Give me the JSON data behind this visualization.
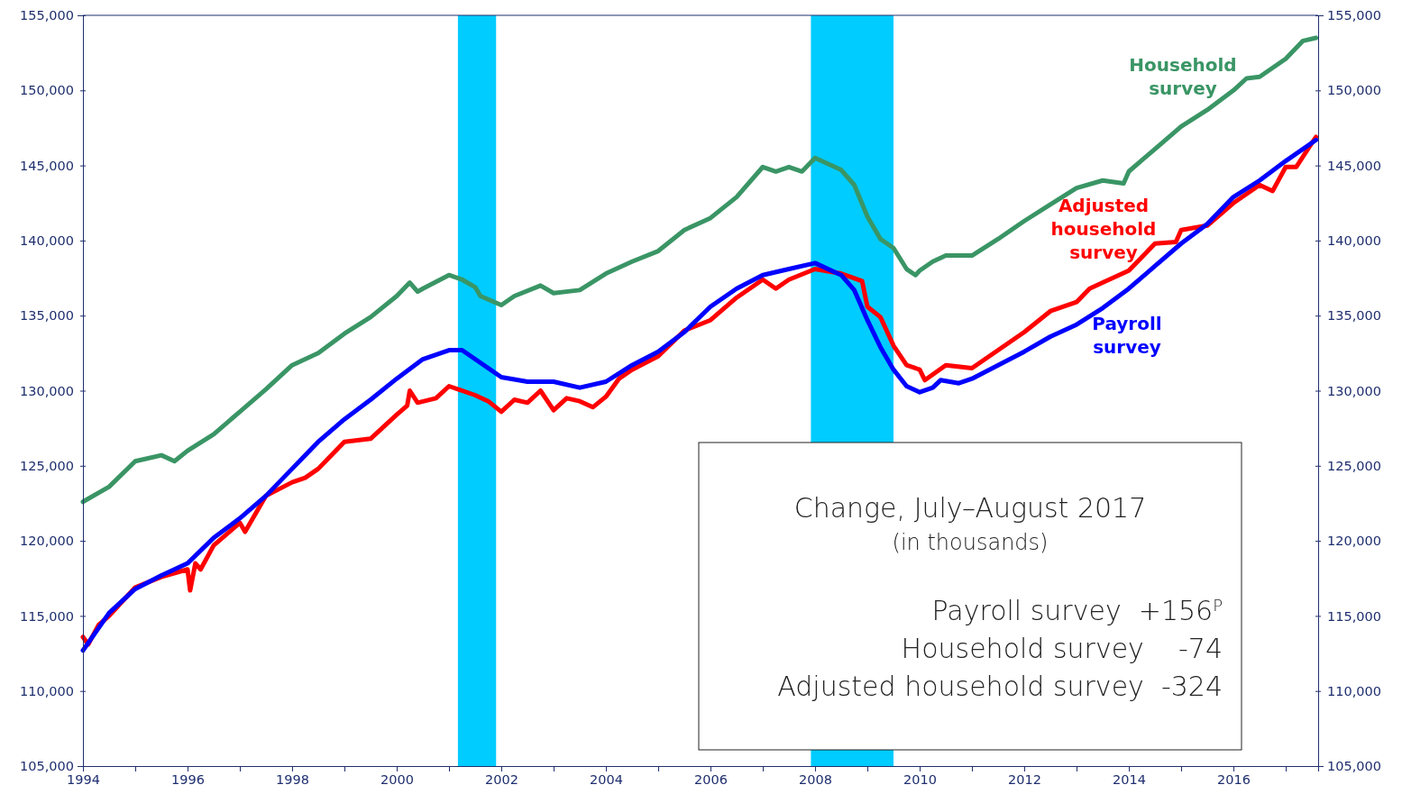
{
  "chart_data": {
    "type": "line",
    "xlim": [
      1994,
      2017.62
    ],
    "xticks": [
      {
        "value": 1994,
        "label": "1994"
      },
      {
        "value": 1995,
        "label": null
      },
      {
        "value": 1996,
        "label": "1996"
      },
      {
        "value": 1997,
        "label": null
      },
      {
        "value": 1998,
        "label": "1998"
      },
      {
        "value": 1999,
        "label": null
      },
      {
        "value": 2000,
        "label": "2000"
      },
      {
        "value": 2001,
        "label": null
      },
      {
        "value": 2002,
        "label": "2002"
      },
      {
        "value": 2003,
        "label": null
      },
      {
        "value": 2004,
        "label": "2004"
      },
      {
        "value": 2005,
        "label": null
      },
      {
        "value": 2006,
        "label": "2006"
      },
      {
        "value": 2007,
        "label": null
      },
      {
        "value": 2008,
        "label": "2008"
      },
      {
        "value": 2009,
        "label": null
      },
      {
        "value": 2010,
        "label": "2010"
      },
      {
        "value": 2011,
        "label": null
      },
      {
        "value": 2012,
        "label": "2012"
      },
      {
        "value": 2013,
        "label": null
      },
      {
        "value": 2014,
        "label": "2014"
      },
      {
        "value": 2015,
        "label": null
      },
      {
        "value": 2016,
        "label": "2016"
      },
      {
        "value": 2017,
        "label": null
      }
    ],
    "ylim": [
      105000,
      155000
    ],
    "yticks": [
      {
        "value": 105000,
        "label": "105,000"
      },
      {
        "value": 110000,
        "label": "110,000"
      },
      {
        "value": 115000,
        "label": "115,000"
      },
      {
        "value": 120000,
        "label": "120,000"
      },
      {
        "value": 125000,
        "label": "125,000"
      },
      {
        "value": 130000,
        "label": "130,000"
      },
      {
        "value": 135000,
        "label": "135,000"
      },
      {
        "value": 140000,
        "label": "140,000"
      },
      {
        "value": 145000,
        "label": "145,000"
      },
      {
        "value": 150000,
        "label": "150,000"
      },
      {
        "value": 155000,
        "label": "155,000"
      }
    ],
    "y2lim": [
      105000,
      155000
    ],
    "y2ticks": [
      {
        "value": 105000,
        "label": "105,000"
      },
      {
        "value": 110000,
        "label": "110,000"
      },
      {
        "value": 115000,
        "label": "115,000"
      },
      {
        "value": 120000,
        "label": "120,000"
      },
      {
        "value": 125000,
        "label": "125,000"
      },
      {
        "value": 130000,
        "label": "130,000"
      },
      {
        "value": 135000,
        "label": "135,000"
      },
      {
        "value": 140000,
        "label": "140,000"
      },
      {
        "value": 145000,
        "label": "145,000"
      },
      {
        "value": 150000,
        "label": "150,000"
      },
      {
        "value": 155000,
        "label": "155,000"
      }
    ],
    "grid": false,
    "legend": false,
    "marker": "none",
    "line_style": "solid",
    "bands": [
      {
        "axis": "x",
        "from": 2001.17,
        "to": 2001.9,
        "color": "#00ccff"
      },
      {
        "axis": "x",
        "from": 2007.92,
        "to": 2009.5,
        "color": "#00ccff"
      }
    ],
    "series": [
      {
        "name": "Household survey",
        "color": "#3a9565",
        "x": [
          1994,
          1994.5,
          1995,
          1995.5,
          1995.75,
          1996,
          1996.5,
          1997,
          1997.5,
          1998,
          1998.5,
          1999,
          1999.5,
          2000,
          2000.25,
          2000.4,
          2000.5,
          2001,
          2001.25,
          2001.5,
          2001.6,
          2002,
          2002.25,
          2002.75,
          2003,
          2003.5,
          2004,
          2004.5,
          2005,
          2005.5,
          2006,
          2006.5,
          2007,
          2007.25,
          2007.5,
          2007.75,
          2008,
          2008.5,
          2008.75,
          2009,
          2009.25,
          2009.5,
          2009.75,
          2009.92,
          2010,
          2010.25,
          2010.5,
          2011,
          2011.5,
          2012,
          2012.5,
          2013,
          2013.5,
          2013.9,
          2014,
          2014.5,
          2015,
          2015.5,
          2016,
          2016.25,
          2016.5,
          2017,
          2017.33,
          2017.58
        ],
        "values": [
          122600,
          123600,
          125300,
          125700,
          125300,
          126000,
          127100,
          128600,
          130100,
          131700,
          132500,
          133800,
          134900,
          136300,
          137200,
          136600,
          136800,
          137700,
          137400,
          136900,
          136300,
          135700,
          136300,
          137000,
          136500,
          136700,
          137800,
          138600,
          139300,
          140700,
          141500,
          142900,
          144900,
          144600,
          144900,
          144600,
          145500,
          144700,
          143700,
          141600,
          140100,
          139500,
          138100,
          137700,
          138000,
          138600,
          139000,
          139000,
          140100,
          141300,
          142400,
          143500,
          144000,
          143800,
          144600,
          146100,
          147600,
          148700,
          150000,
          150800,
          150900,
          152100,
          153300,
          153500
        ]
      },
      {
        "name": "Adjusted household survey",
        "color": "#ff0000",
        "x": [
          1994,
          1994.1,
          1994.3,
          1994.5,
          1995,
          1995.5,
          1996,
          1996.05,
          1996.15,
          1996.25,
          1996.5,
          1997,
          1997.1,
          1997.5,
          1998,
          1998.25,
          1998.5,
          1999,
          1999.5,
          2000,
          2000.2,
          2000.25,
          2000.4,
          2000.75,
          2001,
          2001.5,
          2001.75,
          2002,
          2002.25,
          2002.5,
          2002.75,
          2003,
          2003.25,
          2003.5,
          2003.75,
          2004,
          2004.25,
          2004.5,
          2005,
          2005.5,
          2006,
          2006.5,
          2007,
          2007.25,
          2007.5,
          2008,
          2008.5,
          2008.9,
          2009,
          2009.25,
          2009.5,
          2009.75,
          2010,
          2010.1,
          2010.5,
          2011,
          2011.5,
          2012,
          2012.5,
          2013,
          2013.25,
          2013.5,
          2014,
          2014.5,
          2014.9,
          2015,
          2015.5,
          2016,
          2016.5,
          2016.75,
          2017,
          2017.2,
          2017.5,
          2017.58
        ],
        "values": [
          113600,
          113100,
          114400,
          115000,
          116900,
          117600,
          118100,
          116700,
          118500,
          118100,
          119700,
          121200,
          120600,
          123000,
          123900,
          124200,
          124800,
          126600,
          126800,
          128400,
          129000,
          130000,
          129200,
          129500,
          130300,
          129700,
          129300,
          128600,
          129400,
          129200,
          130000,
          128700,
          129500,
          129300,
          128900,
          129600,
          130800,
          131400,
          132300,
          134000,
          134700,
          136200,
          137400,
          136800,
          137400,
          138100,
          137800,
          137300,
          135600,
          134900,
          133000,
          131700,
          131400,
          130700,
          131700,
          131500,
          132700,
          133900,
          135300,
          135900,
          136800,
          137200,
          138000,
          139800,
          139900,
          140700,
          141000,
          142500,
          143700,
          143300,
          144900,
          144900,
          146500,
          146900
        ]
      },
      {
        "name": "Payroll survey",
        "color": "#0000ff",
        "x": [
          1994,
          1994.5,
          1995,
          1995.5,
          1996,
          1996.5,
          1997,
          1997.5,
          1998,
          1998.5,
          1999,
          1999.5,
          2000,
          2000.5,
          2001,
          2001.25,
          2001.5,
          2002,
          2002.5,
          2003,
          2003.5,
          2004,
          2004.5,
          2005,
          2005.5,
          2006,
          2006.5,
          2007,
          2007.5,
          2008,
          2008.5,
          2008.75,
          2009,
          2009.25,
          2009.5,
          2009.75,
          2010,
          2010.25,
          2010.4,
          2010.75,
          2011,
          2011.5,
          2012,
          2012.5,
          2013,
          2013.5,
          2014,
          2014.5,
          2015,
          2015.5,
          2016,
          2016.5,
          2017,
          2017.58
        ],
        "values": [
          112700,
          115200,
          116800,
          117700,
          118500,
          120200,
          121500,
          123000,
          124800,
          126600,
          128100,
          129400,
          130800,
          132100,
          132700,
          132700,
          132100,
          130900,
          130600,
          130600,
          130200,
          130600,
          131700,
          132600,
          133900,
          135600,
          136800,
          137700,
          138100,
          138500,
          137700,
          136700,
          134700,
          132900,
          131400,
          130300,
          129900,
          130200,
          130700,
          130500,
          130800,
          131700,
          132600,
          133600,
          134400,
          135500,
          136800,
          138300,
          139800,
          141100,
          142900,
          144000,
          145300,
          146700
        ]
      }
    ],
    "annotations": [
      "Change, July–August 2017",
      "(in thousands)",
      "Payroll survey  +156$^{P}$",
      "Household survey    -74",
      "Adjusted household survey  -324"
    ]
  }
}
